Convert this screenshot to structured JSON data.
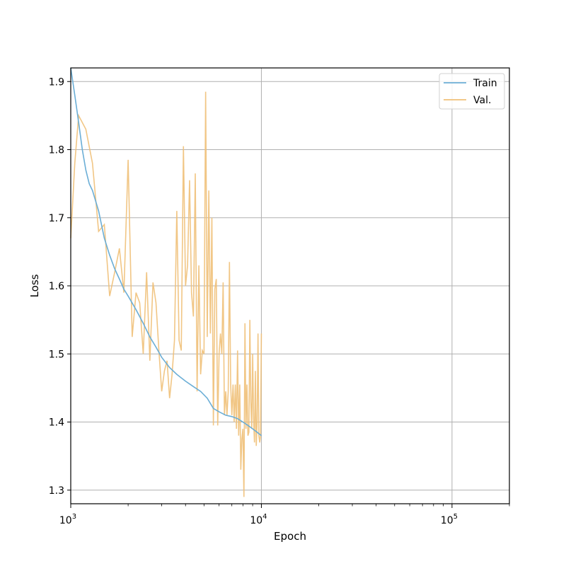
{
  "chart_data": {
    "type": "line",
    "xlabel": "Epoch",
    "ylabel": "Loss",
    "x_scale": "log",
    "xlim": [
      1000,
      200000
    ],
    "ylim": [
      1.28,
      1.92
    ],
    "grid": true,
    "legend_placement": "top-right",
    "x_ticks": [
      {
        "value": 1000,
        "base": "10",
        "exp": "3"
      },
      {
        "value": 10000,
        "base": "10",
        "exp": "4"
      },
      {
        "value": 100000,
        "base": "10",
        "exp": "5"
      }
    ],
    "y_ticks": [
      {
        "value": 1.3,
        "label": "1.3"
      },
      {
        "value": 1.4,
        "label": "1.4"
      },
      {
        "value": 1.5,
        "label": "1.5"
      },
      {
        "value": 1.6,
        "label": "1.6"
      },
      {
        "value": 1.7,
        "label": "1.7"
      },
      {
        "value": 1.8,
        "label": "1.8"
      },
      {
        "value": 1.9,
        "label": "1.9"
      }
    ],
    "series": [
      {
        "name": "Train",
        "color": "#6baed6",
        "x": [
          1000,
          1050,
          1100,
          1150,
          1200,
          1250,
          1300,
          1400,
          1500,
          1600,
          1700,
          1800,
          1900,
          2000,
          2200,
          2400,
          2600,
          2800,
          3000,
          3300,
          3600,
          4000,
          4400,
          4800,
          5200,
          5600,
          6000,
          6500,
          7000,
          7500,
          8000,
          8500,
          9000,
          9500,
          10000
        ],
        "y": [
          1.92,
          1.88,
          1.84,
          1.8,
          1.77,
          1.75,
          1.74,
          1.71,
          1.67,
          1.645,
          1.625,
          1.61,
          1.595,
          1.585,
          1.565,
          1.545,
          1.525,
          1.51,
          1.495,
          1.48,
          1.47,
          1.46,
          1.452,
          1.445,
          1.435,
          1.42,
          1.415,
          1.41,
          1.408,
          1.405,
          1.4,
          1.395,
          1.39,
          1.385,
          1.38
        ]
      },
      {
        "name": "Val.",
        "color": "#f0c078",
        "x": [
          1000,
          1050,
          1100,
          1200,
          1300,
          1400,
          1500,
          1600,
          1700,
          1800,
          1900,
          2000,
          2100,
          2200,
          2300,
          2400,
          2500,
          2600,
          2700,
          2800,
          2900,
          3000,
          3100,
          3200,
          3300,
          3400,
          3500,
          3600,
          3700,
          3800,
          3900,
          4000,
          4100,
          4200,
          4300,
          4400,
          4500,
          4600,
          4700,
          4800,
          4900,
          5000,
          5100,
          5200,
          5300,
          5400,
          5500,
          5600,
          5700,
          5800,
          5900,
          6000,
          6100,
          6200,
          6300,
          6400,
          6500,
          6600,
          6700,
          6800,
          6900,
          7000,
          7100,
          7200,
          7300,
          7400,
          7500,
          7600,
          7700,
          7800,
          7900,
          8000,
          8100,
          8200,
          8300,
          8400,
          8500,
          8600,
          8700,
          8800,
          8900,
          9000,
          9100,
          9200,
          9300,
          9400,
          9500,
          9600,
          9700,
          9800,
          9900,
          10000
        ],
        "y": [
          1.67,
          1.78,
          1.85,
          1.83,
          1.78,
          1.68,
          1.69,
          1.585,
          1.62,
          1.655,
          1.59,
          1.785,
          1.525,
          1.59,
          1.575,
          1.5,
          1.62,
          1.49,
          1.605,
          1.575,
          1.505,
          1.445,
          1.475,
          1.49,
          1.435,
          1.47,
          1.52,
          1.71,
          1.52,
          1.505,
          1.805,
          1.6,
          1.63,
          1.755,
          1.59,
          1.555,
          1.765,
          1.445,
          1.63,
          1.47,
          1.505,
          1.5,
          1.885,
          1.525,
          1.74,
          1.53,
          1.7,
          1.395,
          1.595,
          1.61,
          1.395,
          1.5,
          1.53,
          1.5,
          1.605,
          1.41,
          1.445,
          1.41,
          1.445,
          1.635,
          1.455,
          1.41,
          1.455,
          1.4,
          1.455,
          1.39,
          1.505,
          1.38,
          1.455,
          1.33,
          1.375,
          1.39,
          1.29,
          1.545,
          1.39,
          1.455,
          1.38,
          1.385,
          1.55,
          1.43,
          1.39,
          1.5,
          1.405,
          1.37,
          1.475,
          1.365,
          1.4,
          1.53,
          1.38,
          1.37,
          1.38,
          1.53
        ]
      }
    ]
  }
}
